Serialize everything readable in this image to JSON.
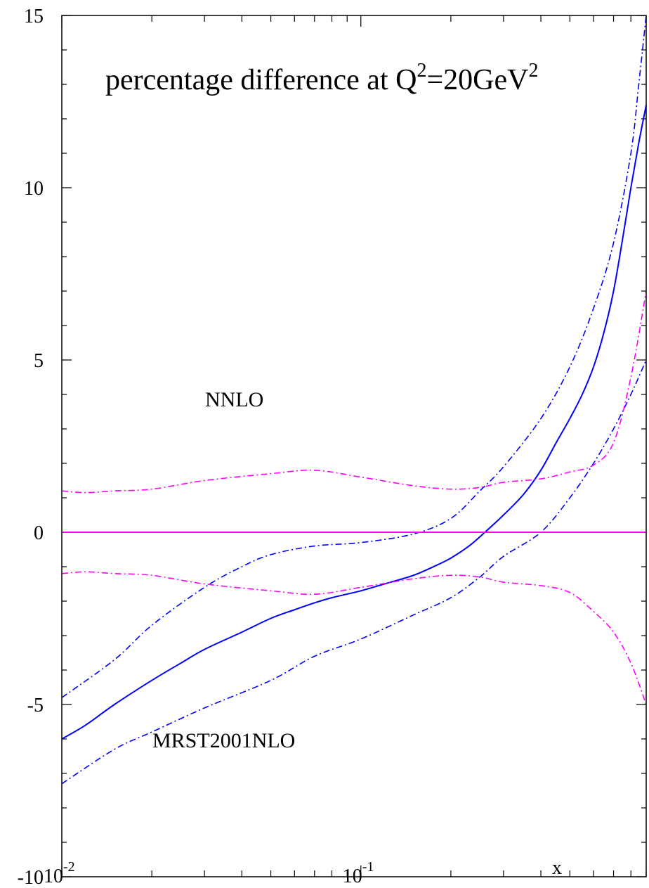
{
  "chart_data": {
    "type": "line",
    "title_parts": {
      "prefix": "percentage difference at Q",
      "sup1": "2",
      "middle": "=20GeV",
      "sup2": "2"
    },
    "xlabel": "x",
    "ylabel": "",
    "x_scale": "log",
    "xlim": [
      0.01,
      0.9
    ],
    "ylim": [
      -10,
      15
    ],
    "y_ticks": [
      "15",
      "10",
      "5",
      "0",
      "-5",
      "-10"
    ],
    "y_tick_values": [
      15,
      10,
      5,
      0,
      -5,
      -10
    ],
    "x_tick_labels": [
      {
        "base": "10",
        "exp": "-2",
        "value": 0.01
      },
      {
        "base": "10",
        "exp": "-1",
        "value": 0.1
      }
    ],
    "annotations": {
      "nnlo": "NNLO",
      "mrst": "MRST2001NLO"
    },
    "colors": {
      "blue": "#0000ff",
      "magenta": "#ff00ff",
      "axis": "#000000"
    },
    "series": [
      {
        "style": "solid",
        "color": "#0000ff",
        "points": [
          [
            0.01,
            -6.0
          ],
          [
            0.012,
            -5.6
          ],
          [
            0.015,
            -5.0
          ],
          [
            0.02,
            -4.3
          ],
          [
            0.025,
            -3.8
          ],
          [
            0.03,
            -3.4
          ],
          [
            0.04,
            -2.9
          ],
          [
            0.05,
            -2.5
          ],
          [
            0.06,
            -2.25
          ],
          [
            0.07,
            -2.05
          ],
          [
            0.08,
            -1.9
          ],
          [
            0.1,
            -1.7
          ],
          [
            0.12,
            -1.5
          ],
          [
            0.15,
            -1.25
          ],
          [
            0.18,
            -0.95
          ],
          [
            0.2,
            -0.75
          ],
          [
            0.23,
            -0.4
          ],
          [
            0.26,
            0.0
          ],
          [
            0.3,
            0.5
          ],
          [
            0.35,
            1.1
          ],
          [
            0.4,
            1.8
          ],
          [
            0.45,
            2.6
          ],
          [
            0.5,
            3.3
          ],
          [
            0.55,
            4.0
          ],
          [
            0.6,
            4.8
          ],
          [
            0.65,
            5.8
          ],
          [
            0.7,
            7.0
          ],
          [
            0.75,
            8.5
          ],
          [
            0.8,
            10.0
          ],
          [
            0.85,
            11.3
          ],
          [
            0.9,
            12.4
          ]
        ]
      },
      {
        "style": "dashdot",
        "color": "#0000ff",
        "points": [
          [
            0.01,
            -4.8
          ],
          [
            0.015,
            -3.7
          ],
          [
            0.02,
            -2.7
          ],
          [
            0.03,
            -1.6
          ],
          [
            0.04,
            -1.0
          ],
          [
            0.05,
            -0.65
          ],
          [
            0.07,
            -0.4
          ],
          [
            0.1,
            -0.3
          ],
          [
            0.15,
            -0.05
          ],
          [
            0.2,
            0.4
          ],
          [
            0.25,
            1.2
          ],
          [
            0.3,
            1.9
          ],
          [
            0.4,
            3.3
          ],
          [
            0.5,
            4.8
          ],
          [
            0.6,
            6.5
          ],
          [
            0.7,
            8.4
          ],
          [
            0.8,
            11.0
          ],
          [
            0.85,
            13.0
          ],
          [
            0.9,
            15.0
          ]
        ]
      },
      {
        "style": "dashdot",
        "color": "#0000ff",
        "points": [
          [
            0.01,
            -7.3
          ],
          [
            0.015,
            -6.3
          ],
          [
            0.02,
            -5.8
          ],
          [
            0.03,
            -5.1
          ],
          [
            0.05,
            -4.3
          ],
          [
            0.07,
            -3.6
          ],
          [
            0.1,
            -3.1
          ],
          [
            0.15,
            -2.4
          ],
          [
            0.2,
            -1.9
          ],
          [
            0.25,
            -1.3
          ],
          [
            0.3,
            -0.7
          ],
          [
            0.4,
            0.0
          ],
          [
            0.5,
            1.0
          ],
          [
            0.6,
            2.0
          ],
          [
            0.7,
            3.0
          ],
          [
            0.8,
            4.0
          ],
          [
            0.9,
            5.0
          ]
        ]
      },
      {
        "style": "solid",
        "color": "#ff00ff",
        "points": [
          [
            0.01,
            0.0
          ],
          [
            0.9,
            0.0
          ]
        ]
      },
      {
        "style": "dashdot",
        "color": "#ff00ff",
        "points": [
          [
            0.01,
            1.2
          ],
          [
            0.012,
            1.15
          ],
          [
            0.015,
            1.2
          ],
          [
            0.02,
            1.25
          ],
          [
            0.03,
            1.5
          ],
          [
            0.05,
            1.7
          ],
          [
            0.07,
            1.8
          ],
          [
            0.1,
            1.6
          ],
          [
            0.15,
            1.35
          ],
          [
            0.2,
            1.25
          ],
          [
            0.25,
            1.3
          ],
          [
            0.3,
            1.45
          ],
          [
            0.4,
            1.55
          ],
          [
            0.5,
            1.75
          ],
          [
            0.6,
            1.95
          ],
          [
            0.7,
            2.6
          ],
          [
            0.8,
            4.5
          ],
          [
            0.9,
            7.0
          ]
        ]
      },
      {
        "style": "dashdot",
        "color": "#ff00ff",
        "points": [
          [
            0.01,
            -1.2
          ],
          [
            0.012,
            -1.15
          ],
          [
            0.015,
            -1.2
          ],
          [
            0.02,
            -1.25
          ],
          [
            0.03,
            -1.5
          ],
          [
            0.05,
            -1.7
          ],
          [
            0.07,
            -1.8
          ],
          [
            0.1,
            -1.6
          ],
          [
            0.15,
            -1.35
          ],
          [
            0.2,
            -1.25
          ],
          [
            0.25,
            -1.3
          ],
          [
            0.3,
            -1.45
          ],
          [
            0.4,
            -1.55
          ],
          [
            0.5,
            -1.75
          ],
          [
            0.6,
            -2.3
          ],
          [
            0.7,
            -2.9
          ],
          [
            0.8,
            -3.8
          ],
          [
            0.9,
            -5.0
          ]
        ]
      }
    ]
  }
}
